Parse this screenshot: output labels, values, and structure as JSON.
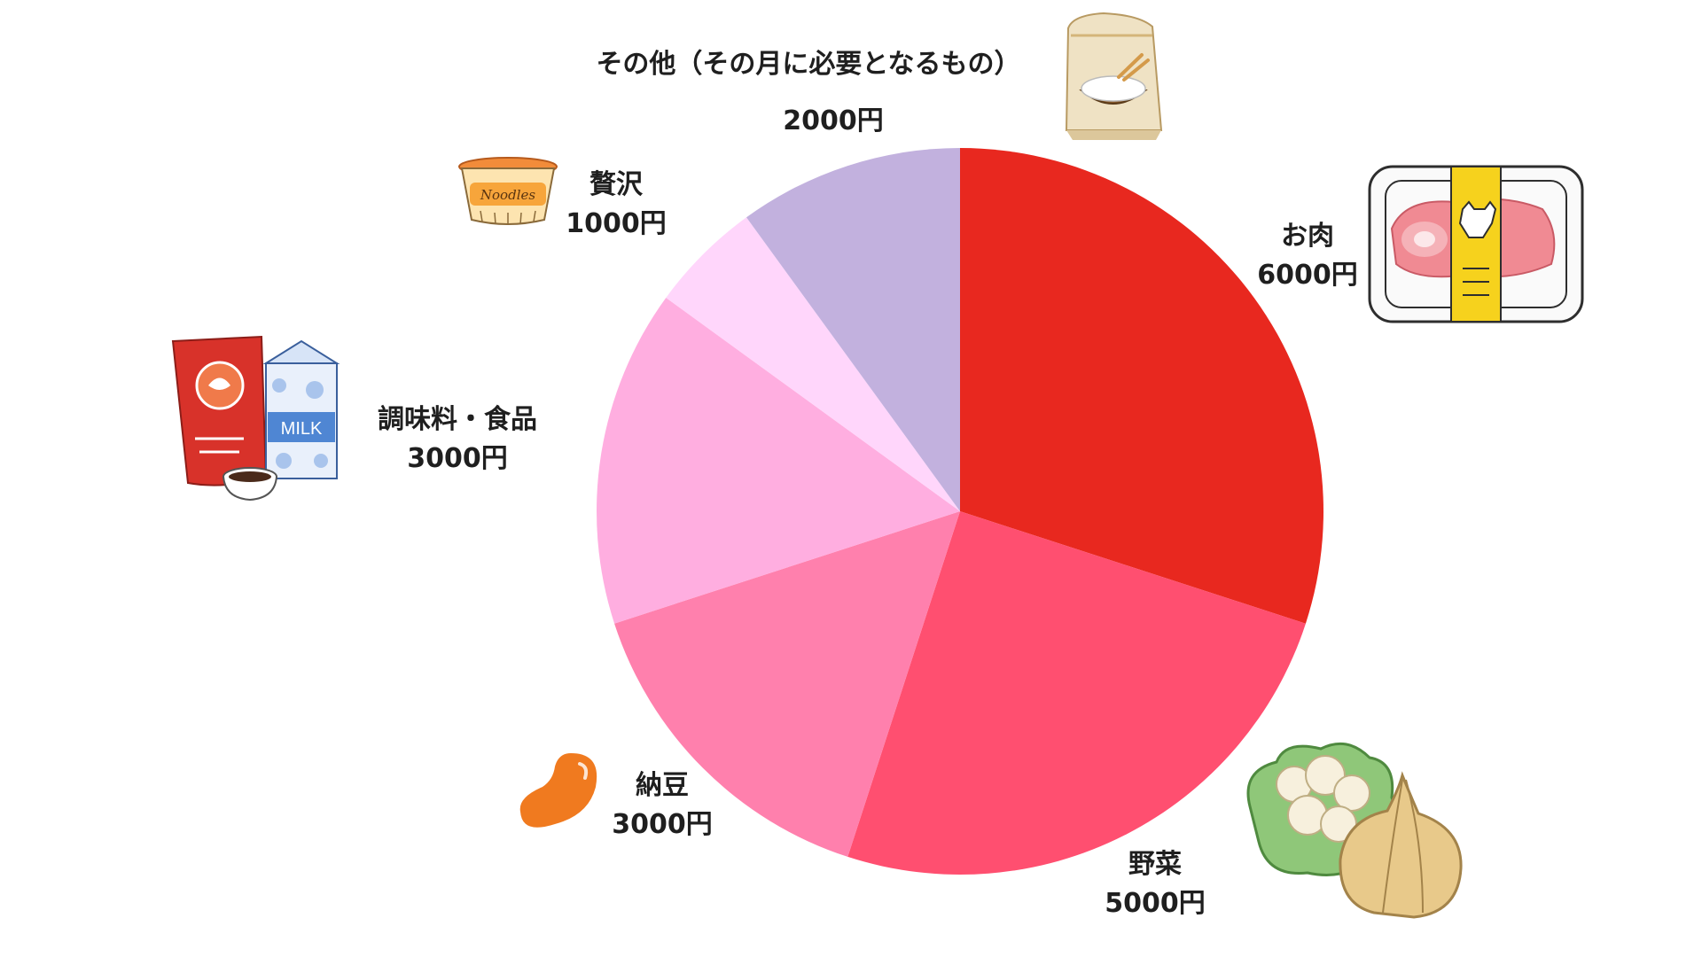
{
  "chart_data": {
    "type": "pie",
    "title": "",
    "unit": "円",
    "start_angle_deg": 0,
    "direction": "clockwise",
    "slices": [
      {
        "label": "お肉",
        "value": 6000,
        "value_label": "6000円",
        "color": "#e8281f",
        "icon": "meat-pack-icon"
      },
      {
        "label": "野菜",
        "value": 5000,
        "value_label": "5000円",
        "color": "#ff4f70",
        "icon": "cauliflower-onion-icon"
      },
      {
        "label": "納豆",
        "value": 3000,
        "value_label": "3000円",
        "color": "#ff80ad",
        "icon": "bean-icon"
      },
      {
        "label": "調味料・食品",
        "value": 3000,
        "value_label": "3000円",
        "color": "#ffaee0",
        "icon": "pouch-milk-icon"
      },
      {
        "label": "贅沢",
        "value": 1000,
        "value_label": "1000円",
        "color": "#ffd6fb",
        "icon": "noodles-cup-icon"
      },
      {
        "label": "その他（その月に必要となるもの）",
        "value": 2000,
        "value_label": "2000円",
        "color": "#c2b1de",
        "icon": "rice-bag-icon"
      }
    ]
  }
}
